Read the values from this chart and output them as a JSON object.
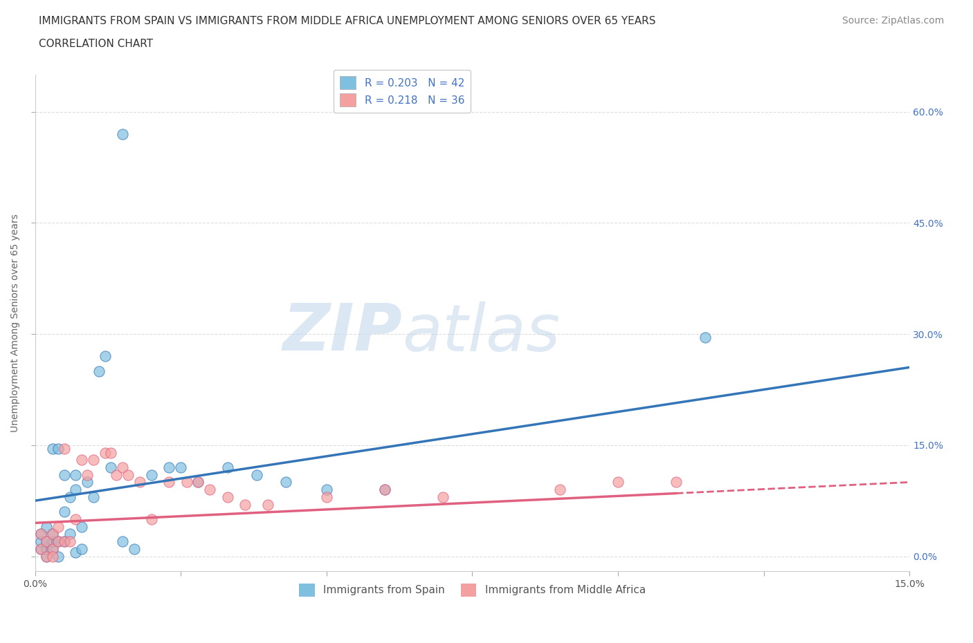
{
  "title_line1": "IMMIGRANTS FROM SPAIN VS IMMIGRANTS FROM MIDDLE AFRICA UNEMPLOYMENT AMONG SENIORS OVER 65 YEARS",
  "title_line2": "CORRELATION CHART",
  "source": "Source: ZipAtlas.com",
  "ylabel": "Unemployment Among Seniors over 65 years",
  "y_ticks": [
    0.0,
    0.15,
    0.3,
    0.45,
    0.6
  ],
  "x_range": [
    0.0,
    0.15
  ],
  "y_range": [
    -0.02,
    0.65
  ],
  "legend_label_spain": "Immigrants from Spain",
  "legend_label_africa": "Immigrants from Middle Africa",
  "color_spain": "#7fbfdf",
  "color_africa": "#f5a0a0",
  "color_trendline_spain": "#3475b8",
  "color_trendline_africa": "#e06080",
  "background": "#ffffff",
  "watermark_zip": "ZIP",
  "watermark_atlas": "atlas",
  "title_fontsize": 11,
  "axis_label_fontsize": 10,
  "tick_fontsize": 10,
  "legend_fontsize": 11,
  "source_fontsize": 10,
  "spain_x": [
    0.001,
    0.001,
    0.001,
    0.002,
    0.002,
    0.002,
    0.002,
    0.003,
    0.003,
    0.003,
    0.003,
    0.004,
    0.004,
    0.004,
    0.005,
    0.005,
    0.005,
    0.006,
    0.006,
    0.007,
    0.007,
    0.007,
    0.008,
    0.008,
    0.009,
    0.01,
    0.011,
    0.012,
    0.013,
    0.015,
    0.017,
    0.02,
    0.023,
    0.025,
    0.028,
    0.033,
    0.038,
    0.043,
    0.05,
    0.06,
    0.115,
    0.015
  ],
  "spain_y": [
    0.01,
    0.02,
    0.03,
    0.0,
    0.01,
    0.02,
    0.04,
    0.01,
    0.02,
    0.03,
    0.145,
    0.145,
    0.0,
    0.02,
    0.02,
    0.06,
    0.11,
    0.08,
    0.03,
    0.09,
    0.11,
    0.005,
    0.01,
    0.04,
    0.1,
    0.08,
    0.25,
    0.27,
    0.12,
    0.02,
    0.01,
    0.11,
    0.12,
    0.12,
    0.1,
    0.12,
    0.11,
    0.1,
    0.09,
    0.09,
    0.295,
    0.57
  ],
  "africa_x": [
    0.001,
    0.001,
    0.002,
    0.002,
    0.003,
    0.003,
    0.003,
    0.004,
    0.004,
    0.005,
    0.005,
    0.006,
    0.007,
    0.008,
    0.009,
    0.01,
    0.012,
    0.013,
    0.014,
    0.015,
    0.016,
    0.018,
    0.02,
    0.023,
    0.026,
    0.028,
    0.03,
    0.033,
    0.036,
    0.04,
    0.05,
    0.06,
    0.07,
    0.09,
    0.1,
    0.11
  ],
  "africa_y": [
    0.01,
    0.03,
    0.0,
    0.02,
    0.01,
    0.03,
    0.0,
    0.02,
    0.04,
    0.02,
    0.145,
    0.02,
    0.05,
    0.13,
    0.11,
    0.13,
    0.14,
    0.14,
    0.11,
    0.12,
    0.11,
    0.1,
    0.05,
    0.1,
    0.1,
    0.1,
    0.09,
    0.08,
    0.07,
    0.07,
    0.08,
    0.09,
    0.08,
    0.09,
    0.1,
    0.1
  ],
  "trendline_spain_x0": 0.0,
  "trendline_spain_y0": 0.075,
  "trendline_spain_x1": 0.15,
  "trendline_spain_y1": 0.255,
  "trendline_africa_x0": 0.0,
  "trendline_africa_y0": 0.045,
  "trendline_africa_x1": 0.11,
  "trendline_africa_y1": 0.085,
  "trendline_africa_dash_x0": 0.11,
  "trendline_africa_dash_y0": 0.085,
  "trendline_africa_dash_x1": 0.15,
  "trendline_africa_dash_y1": 0.1
}
